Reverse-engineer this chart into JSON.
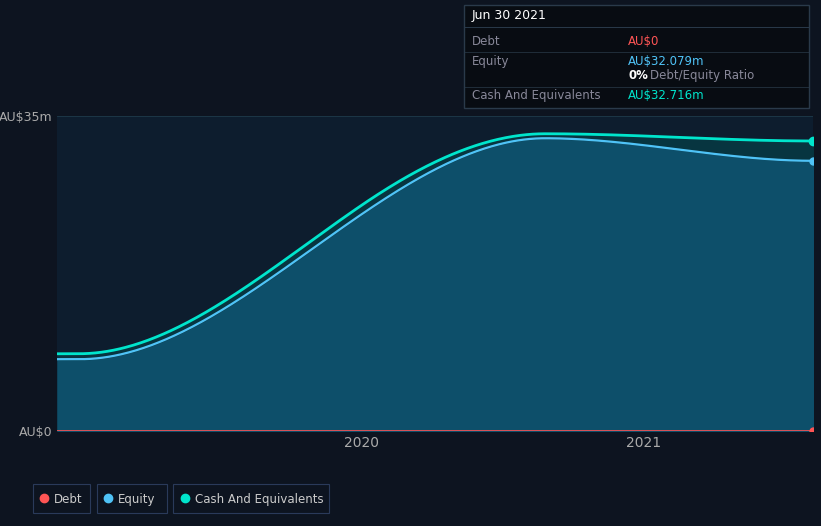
{
  "background_color": "#0d1420",
  "chart_bg_color": "#0d1420",
  "plot_bg_color": "#0d1d2e",
  "title": "Jun 30 2021",
  "ylim": [
    0,
    35
  ],
  "xlim_start": 2018.92,
  "xlim_end": 2021.6,
  "ytick_labels": [
    "AU$0",
    "AU$35m"
  ],
  "ytick_positions": [
    0,
    35
  ],
  "xtick_labels": [
    "2020",
    "2021"
  ],
  "xtick_positions": [
    2020.0,
    2021.0
  ],
  "grid_color": "#1e3a4a",
  "equity_color": "#4fc3f7",
  "cash_color": "#00e5cc",
  "debt_color": "#ff5555",
  "fill_below_equity": "#0d4f6a",
  "fill_between": "#073540",
  "legend_items": [
    {
      "label": "Debt",
      "color": "#ff5555"
    },
    {
      "label": "Equity",
      "color": "#4fc3f7"
    },
    {
      "label": "Cash And Equivalents",
      "color": "#00e5cc"
    }
  ],
  "infobox_bg": "#080c12",
  "infobox_border": "#2a3a4a",
  "infobox_title": "Jun 30 2021",
  "infobox_title_color": "#ffffff",
  "infobox_label_color": "#888899",
  "infobox_rows": [
    {
      "label": "Debt",
      "value": "AU$0",
      "value_color": "#ff5555"
    },
    {
      "label": "Equity",
      "value": "AU$32.079m",
      "value_color": "#4fc3f7",
      "sub_label": "",
      "sub_value": "0% Debt/Equity Ratio",
      "sub_bold": "0%",
      "sub_rest": " Debt/Equity Ratio",
      "sub_bold_color": "#ffffff",
      "sub_rest_color": "#888899"
    },
    {
      "label": "Cash And Equivalents",
      "value": "AU$32.716m",
      "value_color": "#00e5cc"
    }
  ]
}
